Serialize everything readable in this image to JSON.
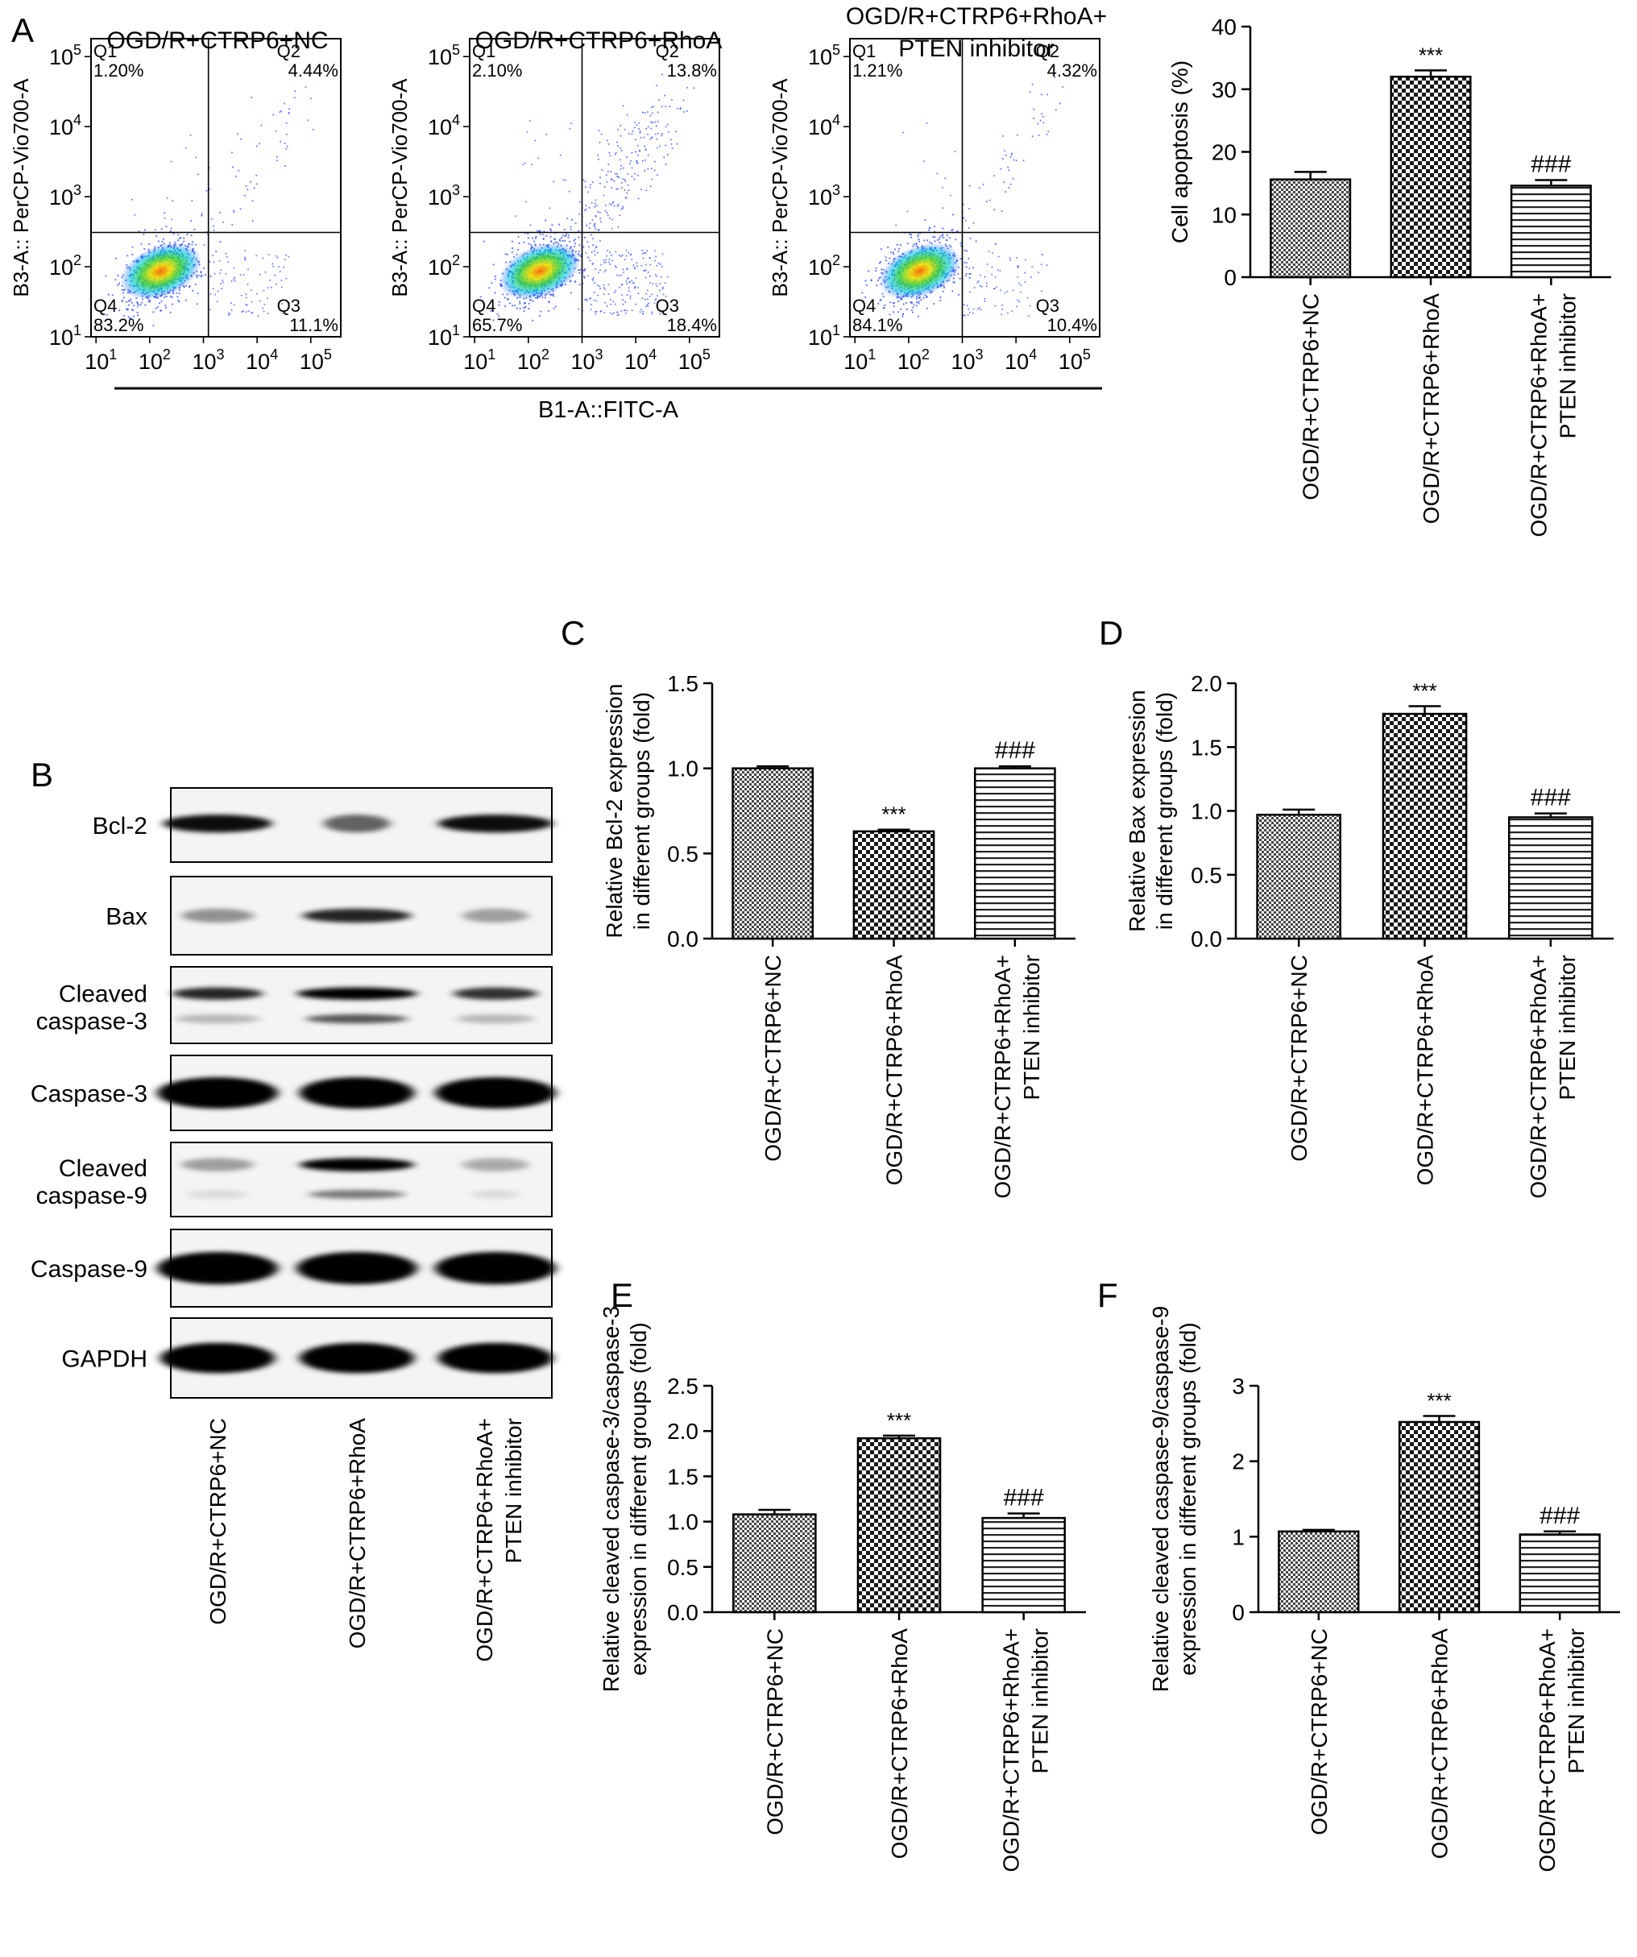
{
  "panel_letters": {
    "a": "A",
    "b": "B",
    "c": "C",
    "d": "D",
    "e": "E",
    "f": "F"
  },
  "colors": {
    "ink": "#000000",
    "dot_blue": "#1f3fff",
    "dot_cyan": "#00d8e8",
    "dot_green": "#36d13a",
    "dot_yellow": "#f0e200",
    "dot_orange": "#ff7a00"
  },
  "flow": {
    "shared_xlabel": "B1-A::FITC-A",
    "ylabel": "B3-A:: PerCP-Vio700-A",
    "tick_exponents": [
      "1",
      "2",
      "3",
      "4",
      "5"
    ],
    "tick_base": "10",
    "plots": [
      {
        "title": "OGD/R+CTRP6+NC",
        "quadrants": {
          "q1": "Q1",
          "q1_value": "1.20%",
          "q2": "Q2",
          "q2_value": "4.44%",
          "q3": "Q3",
          "q3_value": "11.1%",
          "q4": "Q4",
          "q4_value": "83.2%"
        }
      },
      {
        "title": "OGD/R+CTRP6+RhoA",
        "quadrants": {
          "q1": "Q1",
          "q1_value": "2.10%",
          "q2": "Q2",
          "q2_value": "13.8%",
          "q3": "Q3",
          "q3_value": "18.4%",
          "q4": "Q4",
          "q4_value": "65.7%"
        }
      },
      {
        "title_line1": "OGD/R+CTRP6+RhoA+",
        "title_line2": "PTEN inhibitor",
        "quadrants": {
          "q1": "Q1",
          "q1_value": "1.21%",
          "q2": "Q2",
          "q2_value": "4.32%",
          "q3": "Q3",
          "q3_value": "10.4%",
          "q4": "Q4",
          "q4_value": "84.1%"
        }
      }
    ]
  },
  "blot": {
    "rows": [
      {
        "label_line1": "Bcl-2"
      },
      {
        "label_line1": "Bax"
      },
      {
        "label_line1": "Cleaved",
        "label_line2": "caspase-3"
      },
      {
        "label_line1": "Caspase-3"
      },
      {
        "label_line1": "Cleaved",
        "label_line2": "caspase-9"
      },
      {
        "label_line1": "Caspase-9"
      },
      {
        "label_line1": "GAPDH"
      }
    ],
    "lanes": [
      {
        "line1": "OGD/R+CTRP6+NC"
      },
      {
        "line1": "OGD/R+CTRP6+RhoA"
      },
      {
        "line1": "OGD/R+CTRP6+RhoA+",
        "line2": "PTEN inhibitor"
      }
    ]
  },
  "chart_data": [
    {
      "panel": "A",
      "type": "bar",
      "categories": [
        {
          "line1": "OGD/R+CTRP6+NC"
        },
        {
          "line1": "OGD/R+CTRP6+RhoA"
        },
        {
          "line1": "OGD/R+CTRP6+RhoA+",
          "line2": "PTEN inhibitor"
        }
      ],
      "values": [
        15.6,
        32.0,
        14.6
      ],
      "errors": [
        1.2,
        1.0,
        0.9
      ],
      "annotations": [
        "",
        "***",
        "###"
      ],
      "ylabel_lines": [
        "Cell apoptosis (%)"
      ],
      "ylim": [
        0,
        40
      ],
      "yticks": [
        "0",
        "10",
        "20",
        "30",
        "40"
      ],
      "ytick_values": [
        0,
        10,
        20,
        30,
        40
      ]
    },
    {
      "panel": "C",
      "type": "bar",
      "categories": [
        {
          "line1": "OGD/R+CTRP6+NC"
        },
        {
          "line1": "OGD/R+CTRP6+RhoA"
        },
        {
          "line1": "OGD/R+CTRP6+RhoA+",
          "line2": "PTEN inhibitor"
        }
      ],
      "values": [
        1.0,
        0.63,
        1.0
      ],
      "errors": [
        0.012,
        0.01,
        0.012
      ],
      "annotations": [
        "",
        "***",
        "###"
      ],
      "ylabel_lines": [
        "Relative Bcl-2 expression",
        "in different groups (fold)"
      ],
      "ylim": [
        0,
        1.5
      ],
      "yticks": [
        "0.0",
        "0.5",
        "1.0",
        "1.5"
      ],
      "ytick_values": [
        0,
        0.5,
        1.0,
        1.5
      ]
    },
    {
      "panel": "D",
      "type": "bar",
      "categories": [
        {
          "line1": "OGD/R+CTRP6+NC"
        },
        {
          "line1": "OGD/R+CTRP6+RhoA"
        },
        {
          "line1": "OGD/R+CTRP6+RhoA+",
          "line2": "PTEN inhibitor"
        }
      ],
      "values": [
        0.97,
        1.76,
        0.95
      ],
      "errors": [
        0.04,
        0.06,
        0.03
      ],
      "annotations": [
        "",
        "***",
        "###"
      ],
      "ylabel_lines": [
        "Relative Bax expression",
        "in different groups (fold)"
      ],
      "ylim": [
        0,
        2.0
      ],
      "yticks": [
        "0.0",
        "0.5",
        "1.0",
        "1.5",
        "2.0"
      ],
      "ytick_values": [
        0,
        0.5,
        1.0,
        1.5,
        2.0
      ]
    },
    {
      "panel": "E",
      "type": "bar",
      "categories": [
        {
          "line1": "OGD/R+CTRP6+NC"
        },
        {
          "line1": "OGD/R+CTRP6+RhoA"
        },
        {
          "line1": "OGD/R+CTRP6+RhoA+",
          "line2": "PTEN inhibitor"
        }
      ],
      "values": [
        1.08,
        1.92,
        1.04
      ],
      "errors": [
        0.05,
        0.03,
        0.05
      ],
      "annotations": [
        "",
        "***",
        "###"
      ],
      "ylabel_lines": [
        "Relative cleaved caspase-3/caspase-3",
        "expression in different groups (fold)"
      ],
      "ylim": [
        0,
        2.5
      ],
      "yticks": [
        "0.0",
        "0.5",
        "1.0",
        "1.5",
        "2.0",
        "2.5"
      ],
      "ytick_values": [
        0,
        0.5,
        1.0,
        1.5,
        2.0,
        2.5
      ]
    },
    {
      "panel": "F",
      "type": "bar",
      "categories": [
        {
          "line1": "OGD/R+CTRP6+NC"
        },
        {
          "line1": "OGD/R+CTRP6+RhoA"
        },
        {
          "line1": "OGD/R+CTRP6+RhoA+",
          "line2": "PTEN inhibitor"
        }
      ],
      "values": [
        1.07,
        2.52,
        1.03
      ],
      "errors": [
        0.02,
        0.08,
        0.04
      ],
      "annotations": [
        "",
        "***",
        "###"
      ],
      "ylabel_lines": [
        "Relative cleaved caspase-9/caspase-9",
        "expression in different groups (fold)"
      ],
      "ylim": [
        0,
        3
      ],
      "yticks": [
        "0",
        "1",
        "2",
        "3"
      ],
      "ytick_values": [
        0,
        1,
        2,
        3
      ]
    }
  ]
}
